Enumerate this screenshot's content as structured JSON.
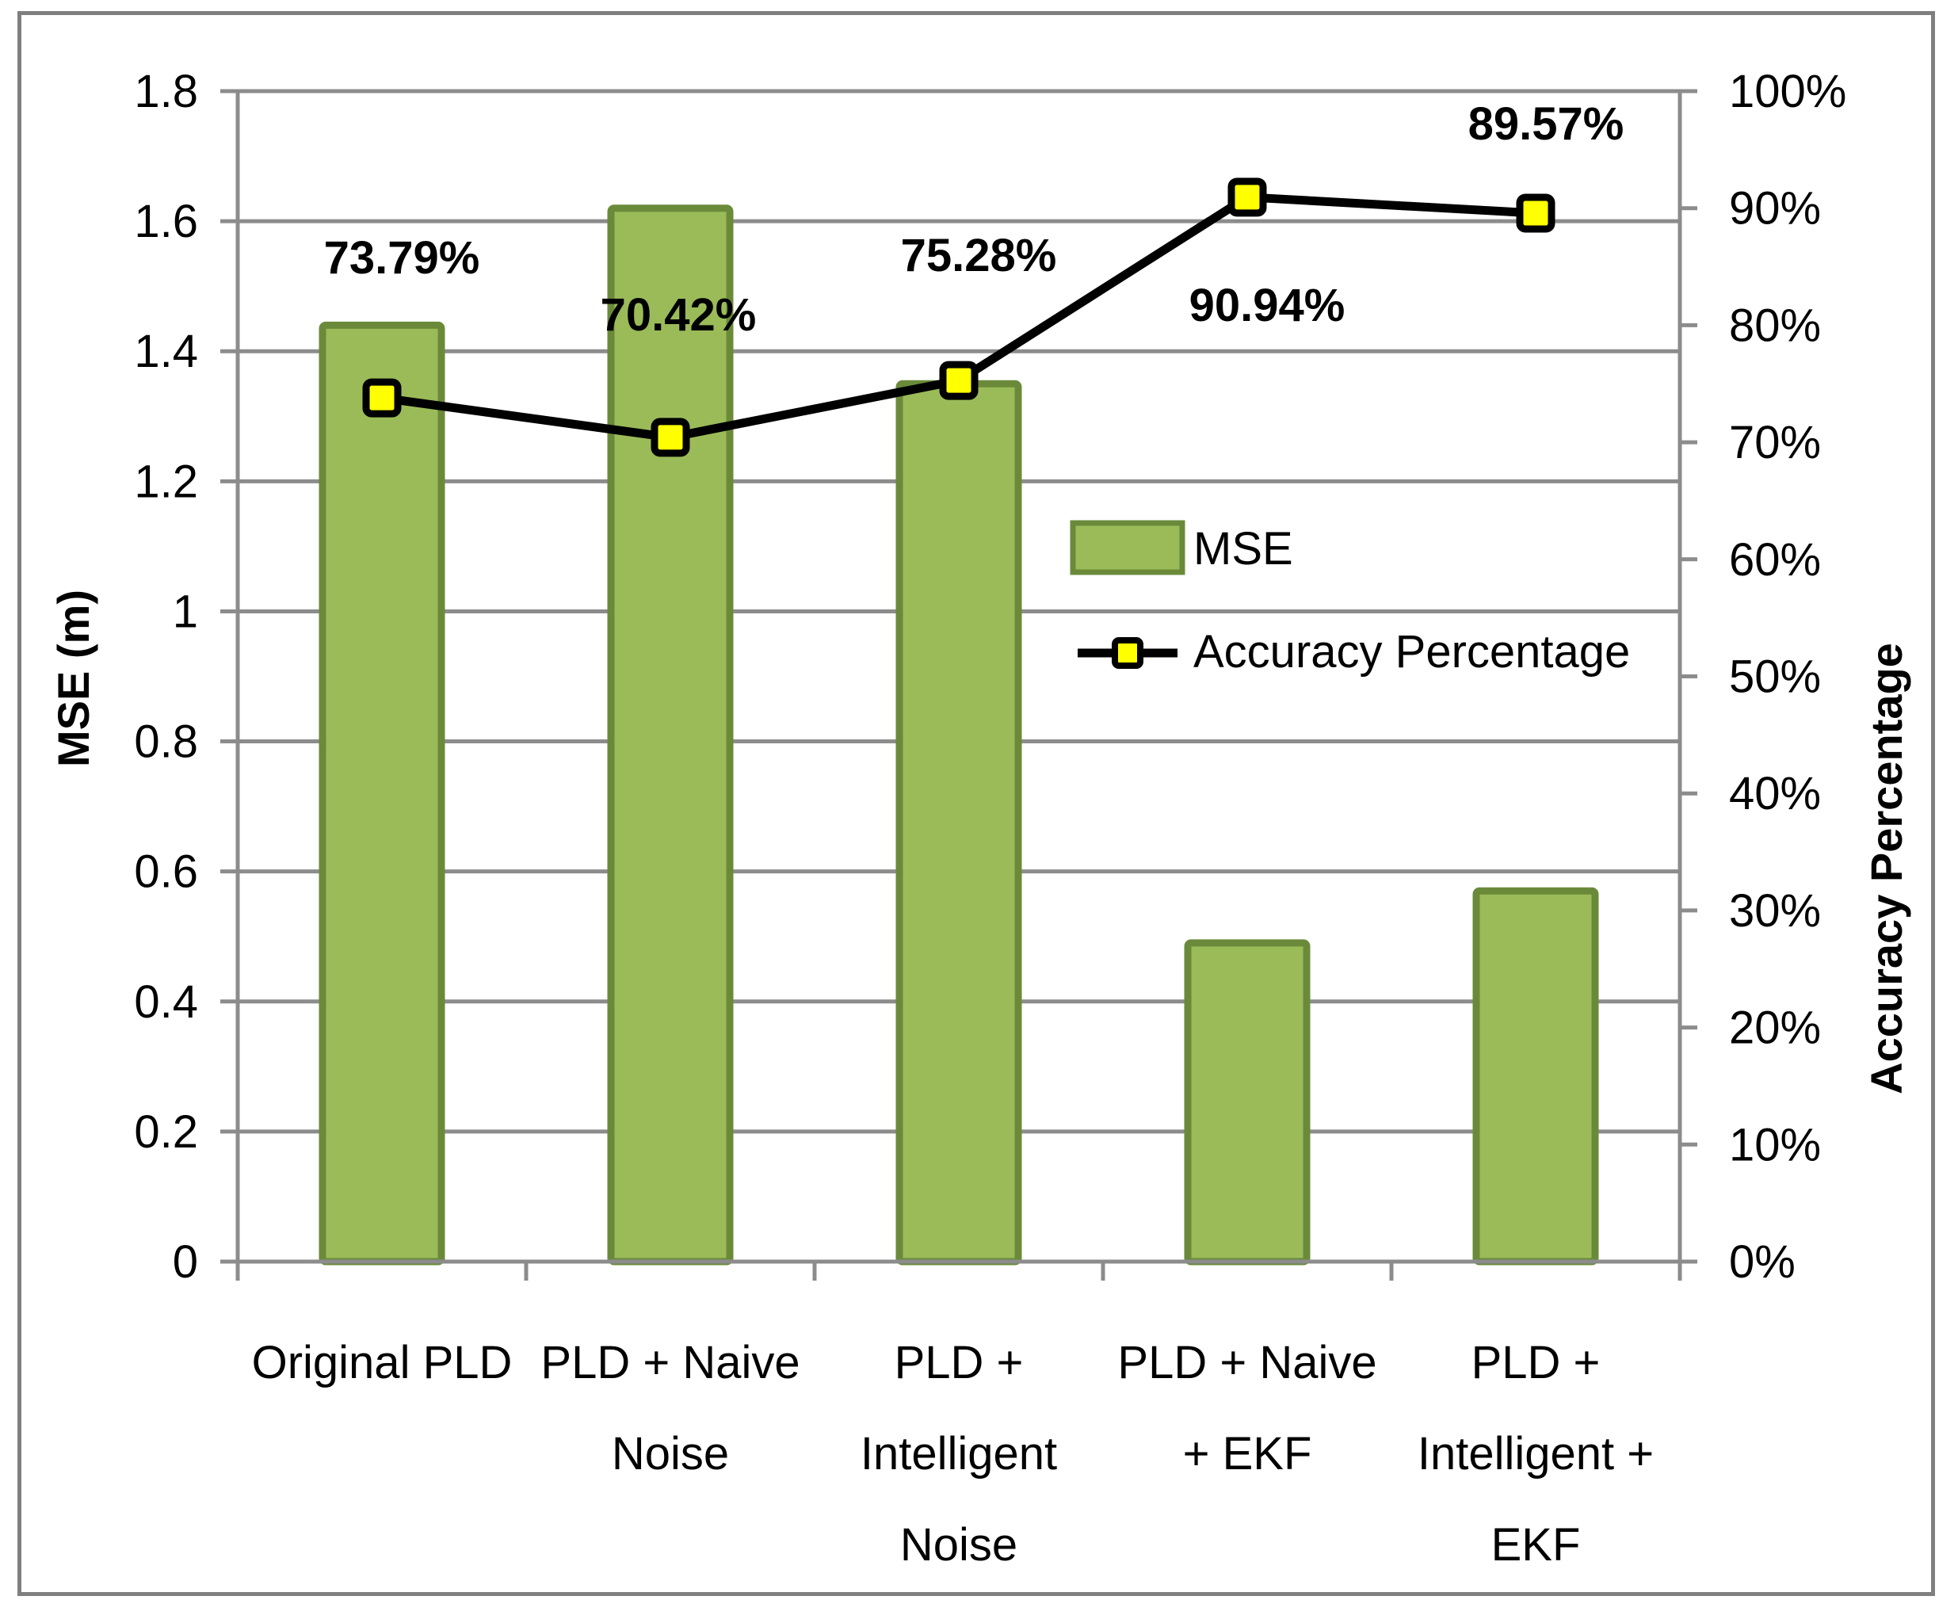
{
  "chart_data": {
    "type": "bar+line",
    "categories": [
      [
        "Original PLD"
      ],
      [
        "PLD + Naive",
        "Noise"
      ],
      [
        "PLD +",
        "Intelligent",
        "Noise"
      ],
      [
        "PLD + Naive",
        "+ EKF"
      ],
      [
        "PLD +",
        "Intelligent +",
        "EKF"
      ]
    ],
    "series": [
      {
        "name": "MSE",
        "type": "bar",
        "axis": "left",
        "values": [
          1.44,
          1.62,
          1.35,
          0.49,
          0.57
        ],
        "color": "#9bbb59",
        "border": "#6a8a3a"
      },
      {
        "name": "Accuracy Percentage",
        "type": "line",
        "axis": "right",
        "values": [
          73.79,
          70.42,
          75.28,
          90.94,
          89.57
        ],
        "labels": [
          "73.79%",
          "70.42%",
          "75.28%",
          "90.94%",
          "89.57%"
        ],
        "color": "#000000",
        "marker_fill": "#ffff00"
      }
    ],
    "ylabel": "MSE (m)",
    "y2label": "Accuracy  Percentage",
    "ylim": [
      0,
      1.8
    ],
    "yticks": [
      "0",
      "0.2",
      "0.4",
      "0.6",
      "0.8",
      "1",
      "1.2",
      "1.4",
      "1.6",
      "1.8"
    ],
    "y2lim": [
      0,
      100
    ],
    "y2ticks": [
      "0%",
      "10%",
      "20%",
      "30%",
      "40%",
      "50%",
      "60%",
      "70%",
      "80%",
      "90%",
      "100%"
    ],
    "grid": true,
    "legend_position": "center-right"
  }
}
